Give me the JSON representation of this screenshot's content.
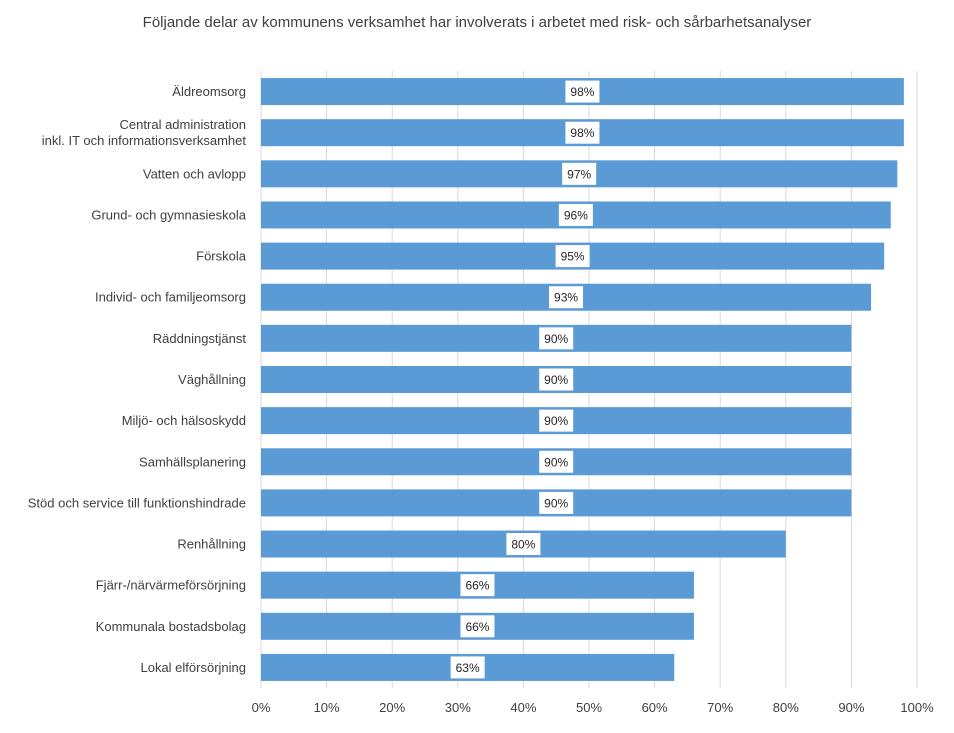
{
  "chart_data": {
    "type": "bar",
    "orientation": "horizontal",
    "title": "Följande delar av kommunens  verksamhet  har involverats i arbetet med risk- och sårbarhetsanalyser",
    "categories": [
      [
        "Äldreomsorg"
      ],
      [
        "Central administration",
        "inkl. IT och informationsverksamhet"
      ],
      [
        "Vatten och avlopp"
      ],
      [
        "Grund- och gymnasieskola"
      ],
      [
        "Förskola"
      ],
      [
        "Individ- och familjeomsorg"
      ],
      [
        "Räddningstjänst"
      ],
      [
        "Väghållning"
      ],
      [
        "Miljö- och hälsoskydd"
      ],
      [
        "Samhällsplanering"
      ],
      [
        "Stöd och service till funktionshindrade"
      ],
      [
        "Renhållning"
      ],
      [
        "Fjärr-/närvärmeförsörjning"
      ],
      [
        "Kommunala bostadsbolag"
      ],
      [
        "Lokal elförsörjning"
      ]
    ],
    "values": [
      98,
      98,
      97,
      96,
      95,
      93,
      90,
      90,
      90,
      90,
      90,
      80,
      66,
      66,
      63
    ],
    "value_labels": [
      "98%",
      "98%",
      "97%",
      "96%",
      "95%",
      "93%",
      "90%",
      "90%",
      "90%",
      "90%",
      "90%",
      "80%",
      "66%",
      "66%",
      "63%"
    ],
    "xlim": [
      0,
      100
    ],
    "xticks": [
      "0%",
      "10%",
      "20%",
      "30%",
      "40%",
      "50%",
      "60%",
      "70%",
      "80%",
      "90%",
      "100%"
    ],
    "gridlines": true,
    "legend": "none",
    "bar_color": "#5b9bd5",
    "grid_color": "#d9d9d9",
    "label_box_color": "#ffffff"
  }
}
